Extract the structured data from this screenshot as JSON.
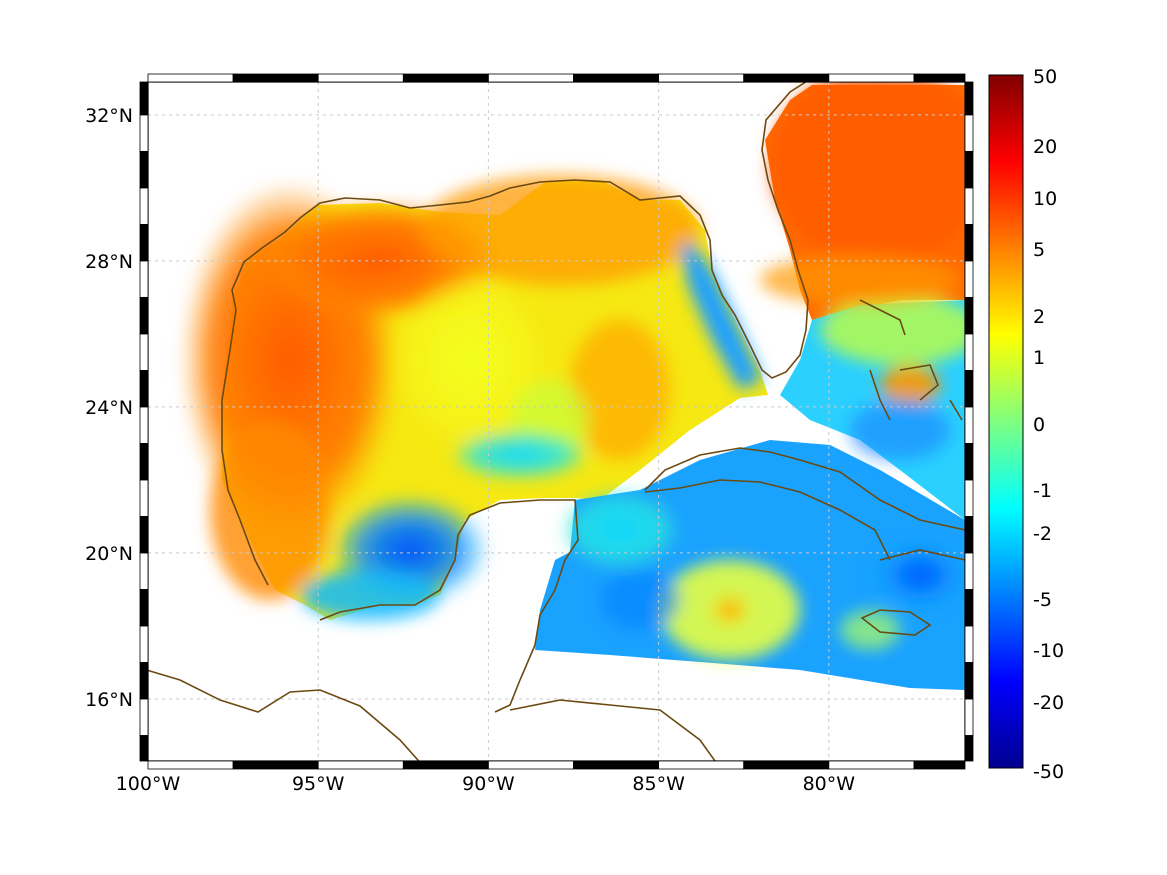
{
  "map": {
    "lon_range": [
      -100,
      -76
    ],
    "lat_range": [
      14.3,
      32.9
    ],
    "lon_ticks": [
      {
        "value": -100,
        "label": "100°W"
      },
      {
        "value": -95,
        "label": "95°W"
      },
      {
        "value": -90,
        "label": "90°W"
      },
      {
        "value": -85,
        "label": "85°W"
      },
      {
        "value": -80,
        "label": "80°W"
      }
    ],
    "lat_ticks": [
      {
        "value": 16,
        "label": "16°N"
      },
      {
        "value": 20,
        "label": "20°N"
      },
      {
        "value": 24,
        "label": "24°N"
      },
      {
        "value": 28,
        "label": "28°N"
      },
      {
        "value": 32,
        "label": "32°N"
      }
    ],
    "grid": true,
    "coastline_color": "#6b4a12"
  },
  "colorbar": {
    "labels": [
      "50",
      "20",
      "10",
      "5",
      "2",
      "1",
      "0",
      "-1",
      "-2",
      "-5",
      "-10",
      "-20",
      "-50"
    ],
    "colormap": "jet",
    "position": "right"
  }
}
